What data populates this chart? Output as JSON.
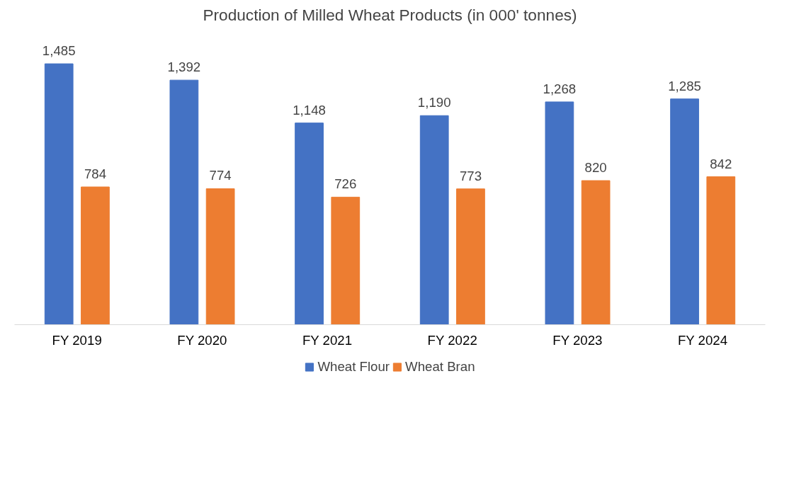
{
  "chart_data": {
    "type": "bar",
    "title": "Production of Milled Wheat Products (in 000' tonnes)",
    "categories": [
      "FY 2019",
      "FY 2020",
      "FY 2021",
      "FY 2022",
      "FY 2023",
      "FY 2024"
    ],
    "series": [
      {
        "name": "Wheat Flour",
        "color": "#4472c4",
        "values": [
          1485,
          1392,
          1148,
          1190,
          1268,
          1285
        ],
        "value_labels": [
          "1,485",
          "1,392",
          "1,148",
          "1,190",
          "1,268",
          "1,285"
        ]
      },
      {
        "name": "Wheat Bran",
        "color": "#ed7d31",
        "values": [
          784,
          774,
          726,
          773,
          820,
          842
        ],
        "value_labels": [
          "784",
          "774",
          "726",
          "773",
          "820",
          "842"
        ]
      }
    ],
    "legend": "bottom",
    "grid": false,
    "tick_labels": "x"
  }
}
